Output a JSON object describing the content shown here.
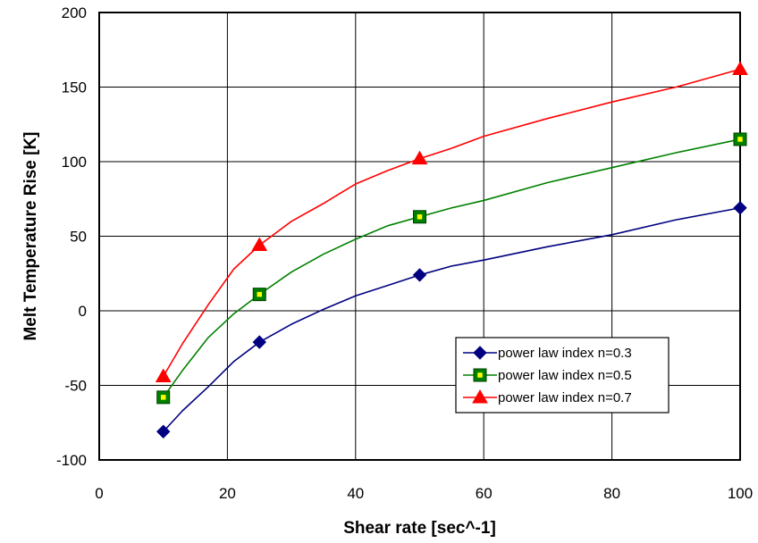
{
  "chart_data": {
    "type": "line",
    "xlabel": "Shear rate [sec^-1]",
    "ylabel": "Melt Temperature Rise [K]",
    "xlim": [
      0,
      100
    ],
    "ylim": [
      -100,
      200
    ],
    "xticks": [
      0,
      20,
      40,
      60,
      80,
      100
    ],
    "yticks": [
      -100,
      -50,
      0,
      50,
      100,
      150,
      200
    ],
    "grid": true,
    "legend_position": "bottom-right",
    "marker_x": [
      10,
      25,
      50,
      100
    ],
    "series": [
      {
        "name": "power law index n=0.3",
        "color": "#000080",
        "marker": "diamond",
        "x": [
          10,
          13,
          17,
          21,
          25,
          30,
          35,
          40,
          45,
          50,
          55,
          60,
          70,
          80,
          90,
          100
        ],
        "y": [
          -81,
          -67,
          -51,
          -34,
          -21,
          -9,
          1,
          10,
          17,
          24,
          30,
          34,
          43,
          51,
          61,
          69
        ]
      },
      {
        "name": "power law index n=0.5",
        "color": "#008000",
        "marker": "square",
        "x": [
          10,
          13,
          17,
          21,
          25,
          30,
          35,
          40,
          45,
          50,
          55,
          60,
          70,
          80,
          90,
          100
        ],
        "y": [
          -58,
          -40,
          -18,
          -2,
          11,
          26,
          38,
          48,
          57,
          63,
          69,
          74,
          86,
          96,
          106,
          115
        ]
      },
      {
        "name": "power law index n=0.7",
        "color": "#ff0000",
        "marker": "triangle",
        "x": [
          10,
          13,
          17,
          21,
          25,
          30,
          35,
          40,
          45,
          50,
          55,
          60,
          70,
          80,
          90,
          100
        ],
        "y": [
          -44,
          -22,
          4,
          28,
          44,
          60,
          72,
          85,
          94,
          102,
          109,
          117,
          129,
          140,
          150,
          162
        ]
      }
    ]
  }
}
